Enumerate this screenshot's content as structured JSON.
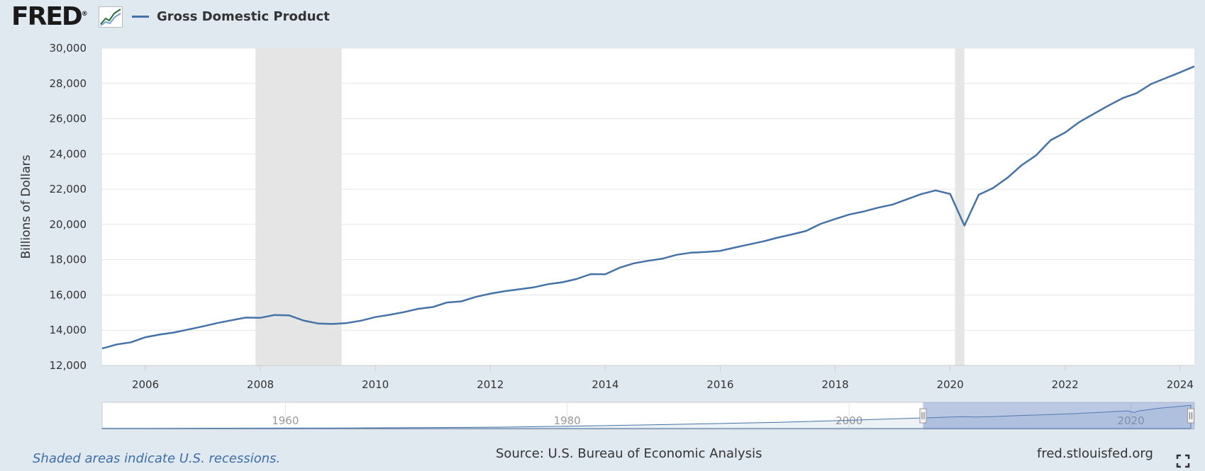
{
  "header": {
    "logo_text": "FRED",
    "logo_mark": "®",
    "graph_icon": "line-chart-icon"
  },
  "chart_data": {
    "type": "line",
    "series": [
      {
        "name": "Gross Domestic Product",
        "color": "#4572a7",
        "x": [
          "2005-04-01",
          "2005-07-01",
          "2005-10-01",
          "2006-01-01",
          "2006-04-01",
          "2006-07-01",
          "2006-10-01",
          "2007-01-01",
          "2007-04-01",
          "2007-07-01",
          "2007-10-01",
          "2008-01-01",
          "2008-04-01",
          "2008-07-01",
          "2008-10-01",
          "2009-01-01",
          "2009-04-01",
          "2009-07-01",
          "2009-10-01",
          "2010-01-01",
          "2010-04-01",
          "2010-07-01",
          "2010-10-01",
          "2011-01-01",
          "2011-04-01",
          "2011-07-01",
          "2011-10-01",
          "2012-01-01",
          "2012-04-01",
          "2012-07-01",
          "2012-10-01",
          "2013-01-01",
          "2013-04-01",
          "2013-07-01",
          "2013-10-01",
          "2014-01-01",
          "2014-04-01",
          "2014-07-01",
          "2014-10-01",
          "2015-01-01",
          "2015-04-01",
          "2015-07-01",
          "2015-10-01",
          "2016-01-01",
          "2016-04-01",
          "2016-07-01",
          "2016-10-01",
          "2017-01-01",
          "2017-04-01",
          "2017-07-01",
          "2017-10-01",
          "2018-01-01",
          "2018-04-01",
          "2018-07-01",
          "2018-10-01",
          "2019-01-01",
          "2019-04-01",
          "2019-07-01",
          "2019-10-01",
          "2020-01-01",
          "2020-04-01",
          "2020-07-01",
          "2020-10-01",
          "2021-01-01",
          "2021-04-01",
          "2021-07-01",
          "2021-10-01",
          "2022-01-01",
          "2022-04-01",
          "2022-07-01",
          "2022-10-01",
          "2023-01-01",
          "2023-04-01",
          "2023-07-01",
          "2023-10-01",
          "2024-01-01",
          "2024-04-01"
        ],
        "values": [
          12962,
          13191,
          13315,
          13603,
          13750,
          13870,
          14040,
          14216,
          14402,
          14564,
          14715,
          14706,
          14866,
          14844,
          14550,
          14382,
          14356,
          14402,
          14541,
          14746,
          14873,
          15024,
          15216,
          15316,
          15573,
          15638,
          15888,
          16076,
          16213,
          16318,
          16429,
          16610,
          16718,
          16902,
          17182,
          17170,
          17540,
          17794,
          17940,
          18063,
          18279,
          18401,
          18437,
          18501,
          18687,
          18863,
          19040,
          19254,
          19433,
          19632,
          20035,
          20309,
          20566,
          20735,
          20951,
          21128,
          21425,
          21721,
          21933,
          21728,
          19935,
          21684,
          22068,
          22656,
          23368,
          23922,
          24777,
          25215,
          25806,
          26273,
          26734,
          27164,
          27454,
          27967,
          28297,
          28625,
          28966
        ]
      }
    ],
    "ylabel": "Billions of Dollars",
    "ylim": [
      12000,
      30000
    ],
    "y_ticks": [
      "12,000",
      "14,000",
      "16,000",
      "18,000",
      "20,000",
      "22,000",
      "24,000",
      "26,000",
      "28,000",
      "30,000"
    ],
    "x_ticks": [
      "2006",
      "2008",
      "2010",
      "2012",
      "2014",
      "2016",
      "2018",
      "2020",
      "2022",
      "2024"
    ],
    "xlim": [
      "2005-04-01",
      "2024-04-01"
    ],
    "recessions": [
      [
        "2007-12-01",
        "2009-06-01"
      ],
      [
        "2020-02-01",
        "2020-04-01"
      ]
    ],
    "recession_color": "#e5e5e5",
    "grid": true,
    "legend": "top-left",
    "navigator": {
      "ticks": [
        "1960",
        "1980",
        "2000",
        "2020"
      ],
      "x_range": [
        1947,
        2024.5
      ],
      "selected_range": [
        2005.25,
        2024.5
      ],
      "values": [
        [
          1947,
          244
        ],
        [
          1950,
          300
        ],
        [
          1955,
          426
        ],
        [
          1960,
          542
        ],
        [
          1965,
          744
        ],
        [
          1970,
          1073
        ],
        [
          1975,
          1684
        ],
        [
          1980,
          2857
        ],
        [
          1985,
          4339
        ],
        [
          1990,
          5963
        ],
        [
          1995,
          7640
        ],
        [
          2000,
          10252
        ],
        [
          2005,
          13040
        ],
        [
          2008,
          14715
        ],
        [
          2009,
          14382
        ],
        [
          2010,
          14746
        ],
        [
          2012,
          16076
        ],
        [
          2014,
          17170
        ],
        [
          2016,
          18501
        ],
        [
          2018,
          20309
        ],
        [
          2019.75,
          21933
        ],
        [
          2020.25,
          19935
        ],
        [
          2020.5,
          21684
        ],
        [
          2022,
          25215
        ],
        [
          2024.25,
          28966
        ]
      ]
    }
  },
  "footer": {
    "note": "Shaded areas indicate U.S. recessions.",
    "source": "Source: U.S. Bureau of Economic Analysis",
    "site": "fred.stlouisfed.org",
    "fullscreen_icon": "fullscreen-icon"
  }
}
